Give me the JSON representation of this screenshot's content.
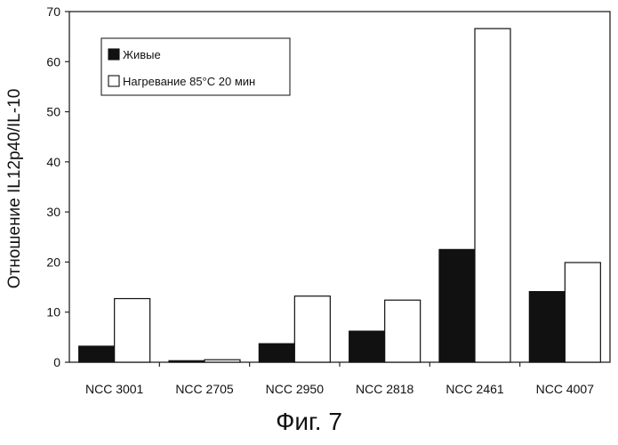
{
  "chart_data": {
    "type": "bar",
    "categories": [
      "NCC 3001",
      "NCC 2705",
      "NCC 2950",
      "NCC 2818",
      "NCC 2461",
      "NCC 4007"
    ],
    "series": [
      {
        "name": "Живые",
        "values": [
          3.2,
          0.3,
          3.7,
          6.2,
          22.5,
          14.1
        ],
        "color": "#111111"
      },
      {
        "name": "Нагревание 85°C 20 мин",
        "values": [
          12.7,
          0.5,
          13.2,
          12.4,
          66.6,
          19.9
        ],
        "color": "#ffffff"
      }
    ],
    "ylabel": "Отношение IL12p40/IL-10",
    "ylim": [
      0,
      70
    ],
    "yticks": [
      0,
      10,
      20,
      30,
      40,
      50,
      60,
      70
    ],
    "grid": false,
    "legend_position": "top-left"
  },
  "figure": {
    "caption": "Фиг. 7"
  }
}
